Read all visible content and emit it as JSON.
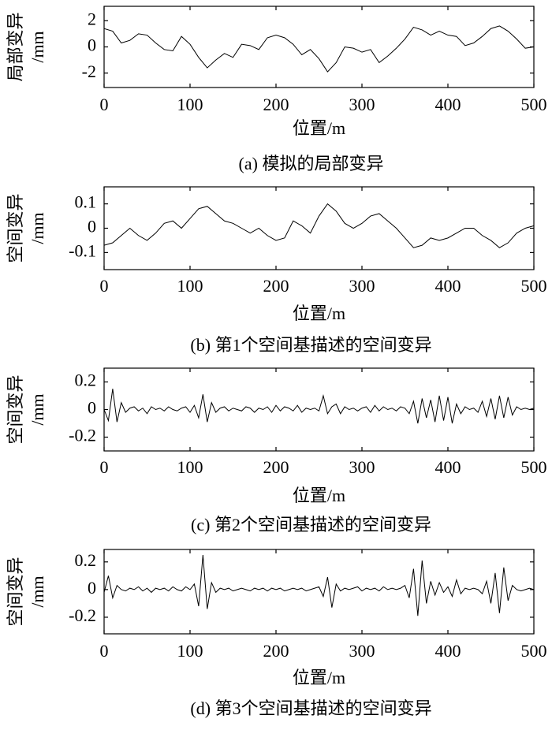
{
  "chart_data": [
    {
      "type": "line",
      "caption": "(a) 模拟的局部变异",
      "xlabel": "位置/m",
      "ylabel_lines": [
        "局部变异",
        "/mm"
      ],
      "color": "#000000",
      "x": [
        0,
        10,
        20,
        30,
        40,
        50,
        60,
        70,
        80,
        90,
        100,
        110,
        120,
        130,
        140,
        150,
        160,
        170,
        180,
        190,
        200,
        210,
        220,
        230,
        240,
        250,
        260,
        270,
        280,
        290,
        300,
        310,
        320,
        330,
        340,
        350,
        360,
        370,
        380,
        390,
        400,
        410,
        420,
        430,
        440,
        450,
        460,
        470,
        480,
        490,
        500
      ],
      "values": [
        1.4,
        1.2,
        0.3,
        0.5,
        1.0,
        0.9,
        0.3,
        -0.2,
        -0.3,
        0.8,
        0.2,
        -0.8,
        -1.6,
        -1.0,
        -0.5,
        -0.8,
        0.2,
        0.1,
        -0.2,
        0.7,
        0.9,
        0.7,
        0.2,
        -0.6,
        -0.2,
        -0.9,
        -1.9,
        -1.2,
        0.0,
        -0.1,
        -0.4,
        -0.2,
        -1.2,
        -0.7,
        -0.1,
        0.6,
        1.5,
        1.3,
        0.9,
        1.2,
        0.9,
        0.8,
        0.1,
        0.3,
        0.8,
        1.4,
        1.6,
        1.2,
        0.6,
        -0.1,
        0.0
      ],
      "xlim": [
        0,
        500
      ],
      "xticks": [
        0,
        100,
        200,
        300,
        400,
        500
      ],
      "ylim": [
        -3.1,
        3.1
      ],
      "yticks": [
        2,
        0,
        -2
      ]
    },
    {
      "type": "line",
      "caption": "(b) 第1个空间基描述的空间变异",
      "xlabel": "位置/m",
      "ylabel_lines": [
        "空间变异",
        "/mm"
      ],
      "color": "#000000",
      "x": [
        0,
        10,
        20,
        30,
        40,
        50,
        60,
        70,
        80,
        90,
        100,
        110,
        120,
        130,
        140,
        150,
        160,
        170,
        180,
        190,
        200,
        210,
        220,
        230,
        240,
        250,
        260,
        270,
        280,
        290,
        300,
        310,
        320,
        330,
        340,
        350,
        360,
        370,
        380,
        390,
        400,
        410,
        420,
        430,
        440,
        450,
        460,
        470,
        480,
        490,
        500
      ],
      "values": [
        -0.07,
        -0.06,
        -0.03,
        0.0,
        -0.03,
        -0.05,
        -0.02,
        0.02,
        0.03,
        0.0,
        0.04,
        0.08,
        0.09,
        0.06,
        0.03,
        0.02,
        0.0,
        -0.02,
        0.0,
        -0.03,
        -0.05,
        -0.04,
        0.03,
        0.01,
        -0.02,
        0.05,
        0.1,
        0.07,
        0.02,
        0.0,
        0.02,
        0.05,
        0.06,
        0.03,
        0.0,
        -0.04,
        -0.08,
        -0.07,
        -0.04,
        -0.05,
        -0.04,
        -0.02,
        0.0,
        0.0,
        -0.03,
        -0.05,
        -0.08,
        -0.06,
        -0.02,
        0.0,
        0.01
      ],
      "xlim": [
        0,
        500
      ],
      "xticks": [
        0,
        100,
        200,
        300,
        400,
        500
      ],
      "ylim": [
        -0.17,
        0.17
      ],
      "yticks": [
        0.1,
        0,
        -0.1
      ]
    },
    {
      "type": "line",
      "caption": "(c) 第2个空间基描述的空间变异",
      "xlabel": "位置/m",
      "ylabel_lines": [
        "空间变异",
        "/mm"
      ],
      "color": "#000000",
      "x": [
        0,
        5,
        10,
        15,
        20,
        25,
        30,
        35,
        40,
        45,
        50,
        55,
        60,
        65,
        70,
        75,
        80,
        85,
        90,
        95,
        100,
        105,
        110,
        115,
        120,
        125,
        130,
        135,
        140,
        145,
        150,
        155,
        160,
        165,
        170,
        175,
        180,
        185,
        190,
        195,
        200,
        205,
        210,
        215,
        220,
        225,
        230,
        235,
        240,
        245,
        250,
        255,
        260,
        265,
        270,
        275,
        280,
        285,
        290,
        295,
        300,
        305,
        310,
        315,
        320,
        325,
        330,
        335,
        340,
        345,
        350,
        355,
        360,
        365,
        370,
        375,
        380,
        385,
        390,
        395,
        400,
        405,
        410,
        415,
        420,
        425,
        430,
        435,
        440,
        445,
        450,
        455,
        460,
        465,
        470,
        475,
        480,
        485,
        490,
        495,
        500
      ],
      "values": [
        0,
        -0.08,
        0.15,
        -0.09,
        0.05,
        -0.02,
        0.01,
        0.02,
        -0.01,
        0.01,
        -0.03,
        0.02,
        0,
        0.01,
        -0.01,
        0.02,
        0,
        -0.01,
        0.01,
        0.02,
        -0.02,
        0.03,
        -0.06,
        0.11,
        -0.09,
        0.05,
        -0.02,
        0.01,
        0.02,
        -0.01,
        0.01,
        0,
        -0.01,
        0.02,
        0.01,
        -0.02,
        0.01,
        0,
        0.02,
        -0.02,
        0.03,
        -0.01,
        0.02,
        0.01,
        -0.01,
        0.03,
        -0.02,
        0.01,
        0,
        0.01,
        -0.01,
        0.1,
        -0.03,
        0.02,
        0.04,
        -0.03,
        0.02,
        0,
        0.01,
        -0.01,
        0.01,
        0.02,
        -0.02,
        0.03,
        -0.01,
        0.02,
        0,
        0.01,
        -0.01,
        0.02,
        0.01,
        -0.03,
        0.06,
        -0.1,
        0.08,
        -0.06,
        0.07,
        -0.09,
        0.1,
        -0.08,
        0.09,
        -0.1,
        0.04,
        -0.03,
        0.02,
        0,
        0.01,
        -0.02,
        0.06,
        -0.05,
        0.08,
        -0.07,
        0.1,
        -0.06,
        0.09,
        -0.04,
        0.02,
        0,
        0.01,
        0,
        0.01
      ],
      "xlim": [
        0,
        500
      ],
      "xticks": [
        0,
        100,
        200,
        300,
        400,
        500
      ],
      "ylim": [
        -0.3,
        0.3
      ],
      "yticks": [
        0.2,
        0,
        -0.2
      ]
    },
    {
      "type": "line",
      "caption": "(d) 第3个空间基描述的空间变异",
      "xlabel": "位置/m",
      "ylabel_lines": [
        "空间变异",
        "/mm"
      ],
      "color": "#000000",
      "x": [
        0,
        5,
        10,
        15,
        20,
        25,
        30,
        35,
        40,
        45,
        50,
        55,
        60,
        65,
        70,
        75,
        80,
        85,
        90,
        95,
        100,
        105,
        110,
        115,
        120,
        125,
        130,
        135,
        140,
        145,
        150,
        155,
        160,
        165,
        170,
        175,
        180,
        185,
        190,
        195,
        200,
        205,
        210,
        215,
        220,
        225,
        230,
        235,
        240,
        245,
        250,
        255,
        260,
        265,
        270,
        275,
        280,
        285,
        290,
        295,
        300,
        305,
        310,
        315,
        320,
        325,
        330,
        335,
        340,
        345,
        350,
        355,
        360,
        365,
        370,
        375,
        380,
        385,
        390,
        395,
        400,
        405,
        410,
        415,
        420,
        425,
        430,
        435,
        440,
        445,
        450,
        455,
        460,
        465,
        470,
        475,
        480,
        485,
        490,
        495,
        500
      ],
      "values": [
        -0.02,
        0.1,
        -0.06,
        0.03,
        0,
        -0.01,
        0.01,
        0,
        0.02,
        -0.01,
        0.01,
        -0.02,
        0.01,
        0,
        0.01,
        -0.01,
        0.02,
        0,
        -0.01,
        0.02,
        0,
        0.04,
        -0.12,
        0.25,
        -0.14,
        0.05,
        -0.02,
        0.01,
        0,
        0.01,
        -0.01,
        0,
        0.01,
        0,
        -0.01,
        0.01,
        0,
        0.01,
        -0.01,
        0.01,
        0,
        0.01,
        -0.01,
        0,
        0.01,
        0,
        0.01,
        -0.01,
        0,
        0.01,
        0.02,
        -0.05,
        0.09,
        -0.13,
        0.04,
        -0.01,
        0.01,
        0,
        0.01,
        0.02,
        -0.01,
        0.01,
        0,
        0.01,
        -0.01,
        0.02,
        0,
        0.01,
        0,
        0.01,
        0.03,
        -0.06,
        0.15,
        -0.19,
        0.21,
        -0.1,
        0.06,
        -0.04,
        0.05,
        -0.02,
        0.02,
        -0.05,
        0.07,
        -0.03,
        0.01,
        0,
        0.01,
        0,
        -0.03,
        0.06,
        -0.1,
        0.12,
        -0.17,
        0.16,
        -0.08,
        0.03,
        0,
        -0.01,
        0,
        0.01,
        0
      ],
      "xlim": [
        0,
        500
      ],
      "xticks": [
        0,
        100,
        200,
        300,
        400,
        500
      ],
      "ylim": [
        -0.32,
        0.29
      ],
      "yticks": [
        0.2,
        0,
        -0.2
      ]
    }
  ]
}
